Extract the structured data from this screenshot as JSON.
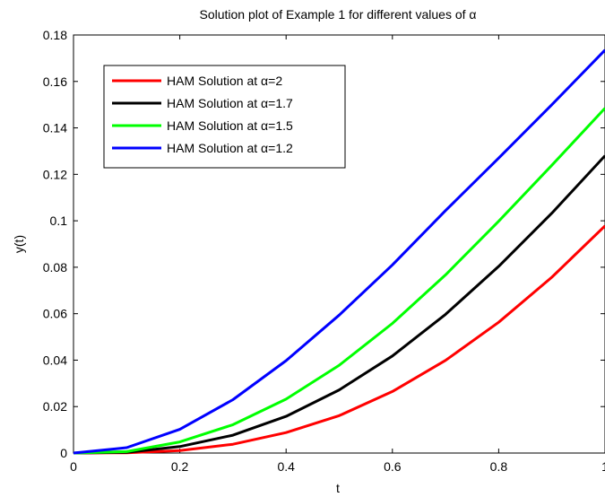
{
  "chart_data": {
    "type": "line",
    "title": "Solution plot of Example 1 for different values of α",
    "xlabel": "t",
    "ylabel": "y(t)",
    "xlim": [
      0,
      1
    ],
    "ylim": [
      0,
      0.18
    ],
    "xticks": [
      0,
      0.2,
      0.4,
      0.6,
      0.8,
      1
    ],
    "xtick_labels": [
      "0",
      "0.2",
      "0.4",
      "0.6",
      "0.8",
      "1"
    ],
    "yticks": [
      0,
      0.02,
      0.04,
      0.06,
      0.08,
      0.1,
      0.12,
      0.14,
      0.16,
      0.18
    ],
    "ytick_labels": [
      "0",
      "0.02",
      "0.04",
      "0.06",
      "0.08",
      "0.1",
      "0.12",
      "0.14",
      "0.16",
      "0.18"
    ],
    "grid": false,
    "legend_position": "top-left",
    "x": [
      0,
      0.1,
      0.2,
      0.3,
      0.4,
      0.5,
      0.6,
      0.7,
      0.8,
      0.9,
      1.0
    ],
    "series": [
      {
        "name": "HAM Solution at α=2",
        "color": "#ff0000",
        "values": [
          0,
          0.0001,
          0.0011,
          0.0038,
          0.0088,
          0.0161,
          0.0265,
          0.0399,
          0.0563,
          0.0757,
          0.0978
        ]
      },
      {
        "name": "HAM Solution at α=1.7",
        "color": "#000000",
        "values": [
          0,
          0.0003,
          0.0028,
          0.0077,
          0.0158,
          0.0272,
          0.0418,
          0.0597,
          0.0804,
          0.1033,
          0.128
        ]
      },
      {
        "name": "HAM Solution at α=1.5",
        "color": "#00ff00",
        "values": [
          0,
          0.0006,
          0.0048,
          0.0122,
          0.0232,
          0.0378,
          0.0558,
          0.0767,
          0.0998,
          0.1239,
          0.1485
        ]
      },
      {
        "name": "HAM Solution at α=1.2",
        "color": "#0000ff",
        "values": [
          0,
          0.0023,
          0.0102,
          0.023,
          0.0398,
          0.0594,
          0.081,
          0.1044,
          0.127,
          0.15,
          0.1735
        ]
      }
    ]
  }
}
